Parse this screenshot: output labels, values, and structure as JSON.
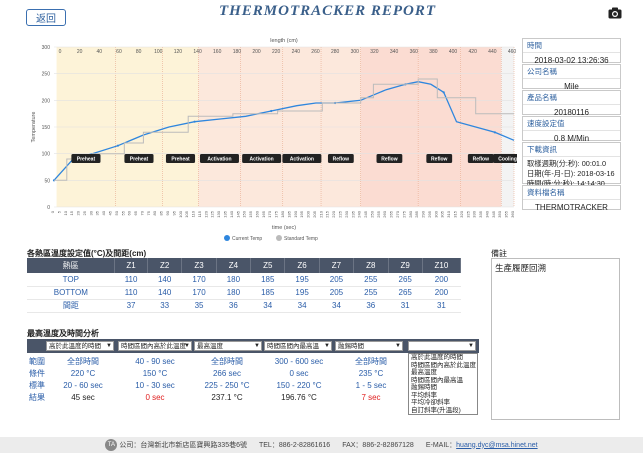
{
  "header": {
    "back_label": "返回",
    "title": "THERMOTRACKER REPORT",
    "camera_icon": "camera-icon"
  },
  "chart_data": {
    "type": "line",
    "xlabel": "time (sec)",
    "ylabel": "Temperature",
    "top_axis_label": "length (cm)",
    "top_ticks": [
      "0",
      "20",
      "40",
      "60",
      "80",
      "100",
      "120",
      "140",
      "160",
      "180",
      "200",
      "220",
      "240",
      "260",
      "280",
      "300",
      "320",
      "340",
      "360",
      "380",
      "400",
      "420",
      "440",
      "460"
    ],
    "xlim": [
      0,
      360
    ],
    "ylim": [
      0,
      300
    ],
    "yticks": [
      0,
      50,
      100,
      150,
      200,
      250,
      300
    ],
    "xticks": [
      0,
      5,
      10,
      15,
      20,
      25,
      30,
      35,
      40,
      45,
      50,
      55,
      60,
      65,
      70,
      75,
      80,
      85,
      90,
      95,
      100,
      105,
      110,
      115,
      120,
      125,
      130,
      135,
      140,
      145,
      150,
      155,
      160,
      165,
      170,
      175,
      180,
      185,
      190,
      195,
      200,
      205,
      210,
      215,
      220,
      225,
      230,
      235,
      240,
      245,
      250,
      255,
      260,
      265,
      270,
      275,
      280,
      285,
      290,
      295,
      300,
      305,
      310,
      315,
      320,
      325,
      330,
      335,
      340,
      345,
      350,
      355,
      360
    ],
    "zones": [
      {
        "label": "Preheat",
        "x0": 2,
        "x1": 48,
        "kind": "preheat"
      },
      {
        "label": "Preheat",
        "x0": 48,
        "x1": 85,
        "kind": "preheat"
      },
      {
        "label": "Preheat",
        "x0": 85,
        "x1": 113,
        "kind": "preheat"
      },
      {
        "label": "Activation",
        "x0": 113,
        "x1": 146,
        "kind": "activation"
      },
      {
        "label": "Activation",
        "x0": 146,
        "x1": 179,
        "kind": "activation"
      },
      {
        "label": "Activation",
        "x0": 179,
        "x1": 209,
        "kind": "activation"
      },
      {
        "label": "Reflow",
        "x0": 209,
        "x1": 240,
        "kind": "activation"
      },
      {
        "label": "Reflow",
        "x0": 240,
        "x1": 285,
        "kind": "reflow"
      },
      {
        "label": "Reflow",
        "x0": 285,
        "x1": 318,
        "kind": "reflow"
      },
      {
        "label": "Reflow",
        "x0": 318,
        "x1": 350,
        "kind": "reflow"
      },
      {
        "label": "Cooling",
        "x0": 350,
        "x1": 360,
        "kind": "cooling"
      }
    ],
    "series": [
      {
        "name": "Current Temp",
        "color": "#2e86de",
        "x": [
          0,
          15,
          30,
          50,
          70,
          90,
          110,
          130,
          150,
          170,
          190,
          205,
          220,
          240,
          260,
          275,
          285,
          295,
          305,
          315,
          330,
          345,
          360
        ],
        "y": [
          50,
          90,
          100,
          115,
          135,
          150,
          160,
          165,
          170,
          180,
          190,
          195,
          195,
          200,
          220,
          230,
          235,
          230,
          215,
          160,
          150,
          140,
          125
        ]
      },
      {
        "name": "Standard Temp",
        "color": "#bbbbbb",
        "x": [
          0,
          10,
          10,
          30,
          30,
          55,
          55,
          70,
          70,
          105,
          105,
          140,
          140,
          175,
          175,
          210,
          210,
          240,
          240,
          250,
          250,
          285,
          285,
          300,
          300,
          330,
          330,
          360
        ],
        "y": [
          50,
          50,
          90,
          90,
          100,
          100,
          120,
          120,
          140,
          140,
          170,
          170,
          175,
          175,
          180,
          180,
          195,
          195,
          205,
          205,
          230,
          230,
          240,
          240,
          205,
          205,
          175,
          175
        ]
      }
    ],
    "legend": [
      "Current Temp",
      "Standard Temp"
    ]
  },
  "side": {
    "time_label": "時間",
    "time_value": "2018-03-02 13:26:36",
    "company_label": "公司名稱",
    "company_value": "Mile",
    "product_label": "產品名稱",
    "product_value": "20180116",
    "speed_label": "速度設定值",
    "speed_value": "0.8 M/Min",
    "download_label": "下載資訊",
    "download_line1": "取樣週期(分:秒): 00:01.0",
    "download_line2": "日期(年-月-日): 2018-03-16",
    "download_line3": "時間(時:分:秒): 14:14:30",
    "file_label": "資料檔名稱",
    "file_value": "THERMOTRACKER"
  },
  "zones_table": {
    "title": "各熱區溫度設定值(°C)及間距(cm)",
    "headers": [
      "熱區",
      "Z1",
      "Z2",
      "Z3",
      "Z4",
      "Z5",
      "Z6",
      "Z7",
      "Z8",
      "Z9",
      "Z10"
    ],
    "rows": [
      {
        "label": "TOP",
        "values": [
          "110",
          "140",
          "170",
          "180",
          "185",
          "195",
          "205",
          "255",
          "265",
          "200"
        ]
      },
      {
        "label": "BOTTOM",
        "values": [
          "110",
          "140",
          "170",
          "180",
          "185",
          "195",
          "205",
          "255",
          "265",
          "200"
        ]
      },
      {
        "label": "間距",
        "values": [
          "37",
          "33",
          "35",
          "36",
          "34",
          "34",
          "34",
          "36",
          "31",
          "31"
        ]
      }
    ]
  },
  "notes": {
    "label": "備註",
    "value": "生產履歷回溯"
  },
  "analysis": {
    "title": "最高溫度及時間分析",
    "selects": [
      "高於此溫度的時間",
      "時間區間內高於此溫度",
      "最高溫度",
      "時間區間內最高溫",
      "融錫時間",
      ""
    ],
    "rows": [
      {
        "label": "範圍",
        "values": [
          "全部時間",
          "40 - 90 sec",
          "全部時間",
          "300 - 600 sec",
          "全部時間"
        ]
      },
      {
        "label": "條件",
        "values": [
          "220 °C",
          "150 °C",
          "266 sec",
          "0 sec",
          "235 °C"
        ]
      },
      {
        "label": "標準",
        "values": [
          "20 - 60 sec",
          "10 - 30 sec",
          "225 - 250 °C",
          "150 - 220 °C",
          "1 - 5 sec"
        ]
      },
      {
        "label": "結果",
        "values": [
          "45 sec",
          "0 sec",
          "237.1 °C",
          "196.76 °C",
          "7 sec"
        ],
        "red": [
          false,
          true,
          false,
          false,
          true
        ]
      }
    ],
    "dropdown_options": [
      "高於此溫度的時間",
      "時間區間內高於此溫度",
      "最高溫度",
      "時間區間內最高溫",
      "融錫時間",
      "平均斜率",
      "平均冷卻斜率",
      "自訂斜率(升溫段)"
    ]
  },
  "footer": {
    "logo": "TA",
    "address": "公司：台灣新北市新店區寶興路335巷6號",
    "tel": "TEL：886-2-82861616",
    "fax": "FAX：886-2-82867128",
    "email_label": "E-MAIL：",
    "email": "huang.dyc@msa.hinet.net"
  }
}
